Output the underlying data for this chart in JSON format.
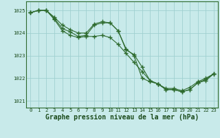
{
  "hours": [
    0,
    1,
    2,
    3,
    4,
    5,
    6,
    7,
    8,
    9,
    10,
    11,
    12,
    13,
    14,
    15,
    16,
    17,
    18,
    19,
    20,
    21,
    22,
    23
  ],
  "series": [
    [
      1024.9,
      1025.0,
      1025.0,
      1024.65,
      1024.2,
      1024.05,
      1023.85,
      1023.9,
      1024.35,
      1024.45,
      1024.45,
      1024.1,
      1023.25,
      1023.05,
      1022.5,
      1021.9,
      1021.75,
      1021.55,
      1021.55,
      1021.45,
      1021.6,
      1021.85,
      1022.0,
      1022.2
    ],
    [
      1024.9,
      1025.0,
      1025.0,
      1024.7,
      1024.35,
      1024.15,
      1024.0,
      1024.0,
      1024.4,
      1024.5,
      1024.45,
      1024.1,
      1023.3,
      1023.0,
      1022.0,
      1021.85,
      1021.75,
      1021.5,
      1021.5,
      1021.4,
      1021.5,
      1021.8,
      1021.9,
      1022.2
    ],
    [
      1024.9,
      1025.0,
      1025.0,
      1024.6,
      1024.1,
      1023.9,
      1023.8,
      1023.85,
      1023.85,
      1023.9,
      1023.8,
      1023.5,
      1023.1,
      1022.7,
      1022.3,
      1021.9,
      1021.75,
      1021.5,
      1021.5,
      1021.4,
      1021.5,
      1021.8,
      1021.95,
      1022.2
    ]
  ],
  "line_color": "#2d6a2d",
  "marker": "+",
  "marker_size": 4.0,
  "marker_linewidth": 1.0,
  "background_color": "#c8eaea",
  "grid_color": "#a0d0d0",
  "text_color": "#1a4a1a",
  "ylim": [
    1020.7,
    1025.4
  ],
  "yticks": [
    1021,
    1022,
    1023,
    1024,
    1025
  ],
  "xticks": [
    0,
    1,
    2,
    3,
    4,
    5,
    6,
    7,
    8,
    9,
    10,
    11,
    12,
    13,
    14,
    15,
    16,
    17,
    18,
    19,
    20,
    21,
    22,
    23
  ],
  "bottom_label": "Graphe pression niveau de la mer (hPa)",
  "label_fontsize": 7.0,
  "tick_fontsize": 5.2,
  "linewidth": 0.8
}
